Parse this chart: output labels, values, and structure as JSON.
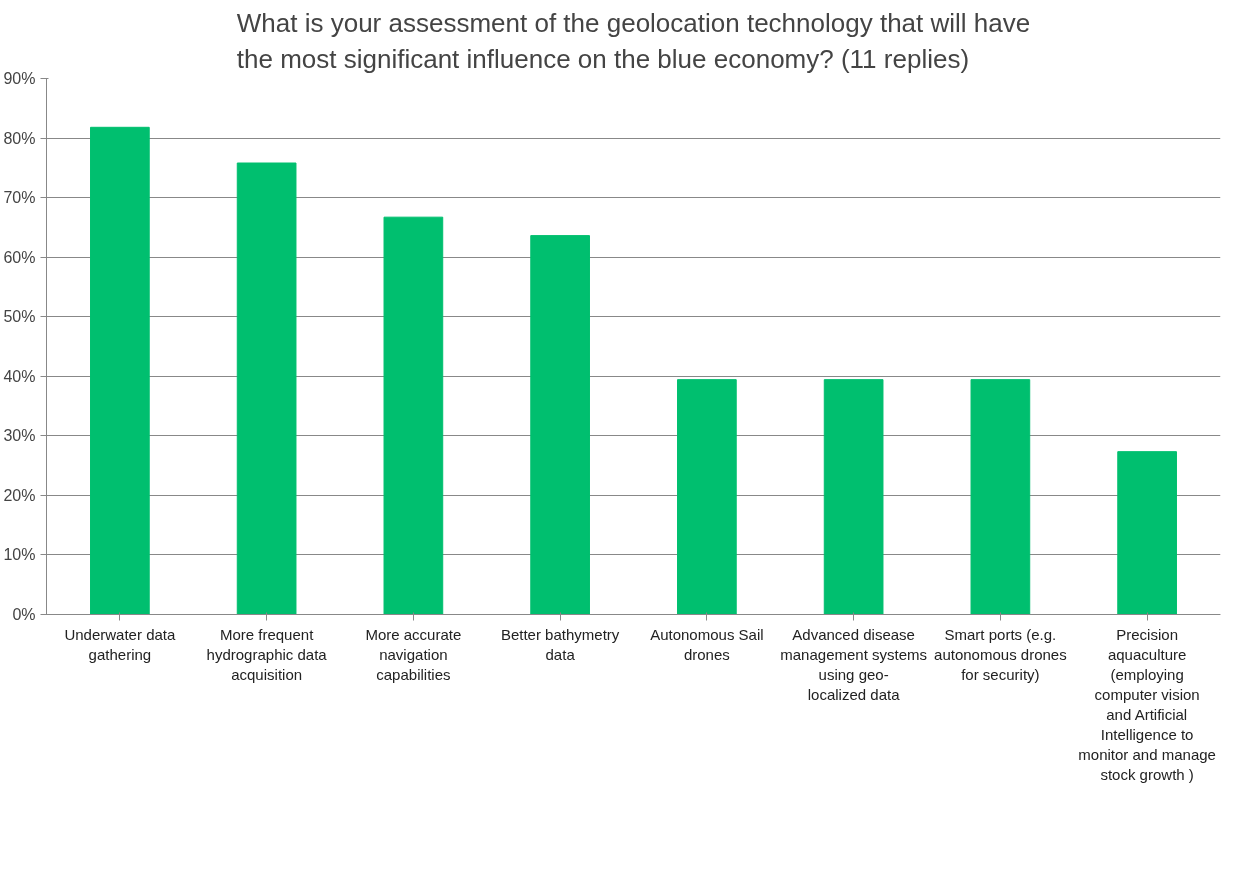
{
  "chart_data": {
    "type": "bar",
    "title": "What is your assessment of the geolocation technology that will have the most significant influence on the blue economy? (11 replies)",
    "categories": [
      "Underwater data gathering",
      "More frequent hydrographic data acquisition",
      "More accurate navigation capabilities",
      "Better bathymetry data",
      "Autonomous Sail drones",
      "Advanced disease management systems using geo-localized data",
      "Smart ports (e.g. autonomous drones for security)",
      "Precision aquaculture (employing computer vision and Artificial Intelligence to monitor and manage stock growth )"
    ],
    "values": [
      81.8,
      75.8,
      66.7,
      63.6,
      39.4,
      39.4,
      39.4,
      27.3
    ],
    "color": "#00bf6f",
    "ylim": [
      0,
      90
    ],
    "yticks": [
      {
        "value": 0,
        "label": "0%"
      },
      {
        "value": 10,
        "label": "10%"
      },
      {
        "value": 20,
        "label": "20%"
      },
      {
        "value": 30,
        "label": "30%"
      },
      {
        "value": 40,
        "label": "40%"
      },
      {
        "value": 50,
        "label": "50%"
      },
      {
        "value": 60,
        "label": "60%"
      },
      {
        "value": 70,
        "label": "70%"
      },
      {
        "value": 80,
        "label": "80%"
      },
      {
        "value": 90,
        "label": "90%"
      }
    ],
    "grid": "y"
  }
}
